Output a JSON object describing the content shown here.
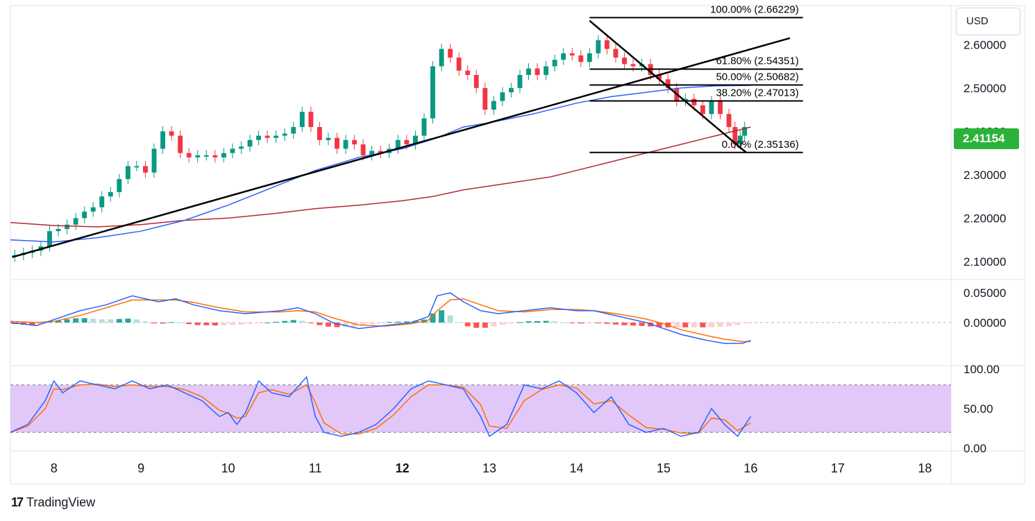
{
  "currency": "USD",
  "last_price": "2.41154",
  "logo": {
    "mark": "17",
    "text": "TradingView"
  },
  "colors": {
    "up": "#089981",
    "down": "#f23645",
    "ma_fast": "#2962ff",
    "ma_slow": "#b22833",
    "macd": "#2962ff",
    "signal": "#ff6d00",
    "rsi": "#2962ff",
    "rsi_signal": "#ff6d00",
    "rsi_band": "#e1c8f9",
    "price_badge": "#2cb23b"
  },
  "chart_data": {
    "type": "candlestick",
    "x_ticks": [
      {
        "label": "8",
        "x": 8
      },
      {
        "label": "9",
        "x": 9
      },
      {
        "label": "10",
        "x": 10
      },
      {
        "label": "11",
        "x": 11
      },
      {
        "label": "12",
        "x": 12,
        "bold": true
      },
      {
        "label": "13",
        "x": 13
      },
      {
        "label": "14",
        "x": 14
      },
      {
        "label": "15",
        "x": 15
      },
      {
        "label": "16",
        "x": 16
      },
      {
        "label": "17",
        "x": 17
      },
      {
        "label": "18",
        "x": 18
      }
    ],
    "price": {
      "ylim": [
        2.06,
        2.69
      ],
      "y_ticks": [
        "2.60000",
        "2.50000",
        "2.40000",
        "2.30000",
        "2.20000",
        "2.10000"
      ],
      "series_close": [
        [
          7.55,
          2.115
        ],
        [
          7.65,
          2.12
        ],
        [
          7.75,
          2.125
        ],
        [
          7.85,
          2.135
        ],
        [
          7.95,
          2.17
        ],
        [
          8.05,
          2.175
        ],
        [
          8.15,
          2.185
        ],
        [
          8.25,
          2.2
        ],
        [
          8.35,
          2.215
        ],
        [
          8.45,
          2.225
        ],
        [
          8.55,
          2.25
        ],
        [
          8.65,
          2.26
        ],
        [
          8.75,
          2.29
        ],
        [
          8.85,
          2.32
        ],
        [
          8.95,
          2.32
        ],
        [
          9.05,
          2.305
        ],
        [
          9.15,
          2.36
        ],
        [
          9.25,
          2.4
        ],
        [
          9.35,
          2.39
        ],
        [
          9.45,
          2.35
        ],
        [
          9.55,
          2.34
        ],
        [
          9.65,
          2.345
        ],
        [
          9.75,
          2.345
        ],
        [
          9.85,
          2.34
        ],
        [
          9.95,
          2.35
        ],
        [
          10.05,
          2.36
        ],
        [
          10.15,
          2.365
        ],
        [
          10.25,
          2.38
        ],
        [
          10.35,
          2.39
        ],
        [
          10.45,
          2.385
        ],
        [
          10.55,
          2.39
        ],
        [
          10.65,
          2.395
        ],
        [
          10.75,
          2.41
        ],
        [
          10.85,
          2.445
        ],
        [
          10.95,
          2.41
        ],
        [
          11.05,
          2.38
        ],
        [
          11.15,
          2.385
        ],
        [
          11.25,
          2.36
        ],
        [
          11.35,
          2.38
        ],
        [
          11.45,
          2.37
        ],
        [
          11.55,
          2.345
        ],
        [
          11.65,
          2.355
        ],
        [
          11.75,
          2.35
        ],
        [
          11.85,
          2.36
        ],
        [
          11.95,
          2.38
        ],
        [
          12.05,
          2.37
        ],
        [
          12.15,
          2.39
        ],
        [
          12.25,
          2.43
        ],
        [
          12.35,
          2.55
        ],
        [
          12.45,
          2.59
        ],
        [
          12.55,
          2.57
        ],
        [
          12.65,
          2.54
        ],
        [
          12.75,
          2.53
        ],
        [
          12.85,
          2.5
        ],
        [
          12.95,
          2.45
        ],
        [
          13.05,
          2.47
        ],
        [
          13.15,
          2.49
        ],
        [
          13.25,
          2.5
        ],
        [
          13.35,
          2.53
        ],
        [
          13.45,
          2.545
        ],
        [
          13.55,
          2.53
        ],
        [
          13.65,
          2.55
        ],
        [
          13.75,
          2.565
        ],
        [
          13.85,
          2.58
        ],
        [
          13.95,
          2.575
        ],
        [
          14.05,
          2.56
        ],
        [
          14.15,
          2.58
        ],
        [
          14.25,
          2.61
        ],
        [
          14.35,
          2.59
        ],
        [
          14.45,
          2.57
        ],
        [
          14.55,
          2.555
        ],
        [
          14.65,
          2.55
        ],
        [
          14.75,
          2.555
        ],
        [
          14.85,
          2.53
        ],
        [
          14.95,
          2.52
        ],
        [
          15.05,
          2.5
        ],
        [
          15.15,
          2.47
        ],
        [
          15.25,
          2.475
        ],
        [
          15.35,
          2.46
        ],
        [
          15.45,
          2.44
        ],
        [
          15.55,
          2.47
        ],
        [
          15.65,
          2.44
        ],
        [
          15.75,
          2.41
        ],
        [
          15.82,
          2.37
        ],
        [
          15.88,
          2.39
        ],
        [
          15.93,
          2.41
        ]
      ],
      "ma_fast": [
        [
          7.5,
          2.15
        ],
        [
          8.0,
          2.145
        ],
        [
          8.5,
          2.155
        ],
        [
          9.0,
          2.17
        ],
        [
          9.5,
          2.195
        ],
        [
          10.0,
          2.23
        ],
        [
          10.5,
          2.27
        ],
        [
          11.0,
          2.31
        ],
        [
          11.5,
          2.34
        ],
        [
          12.0,
          2.36
        ],
        [
          12.4,
          2.385
        ],
        [
          12.7,
          2.41
        ],
        [
          13.0,
          2.42
        ],
        [
          13.5,
          2.44
        ],
        [
          14.0,
          2.465
        ],
        [
          14.4,
          2.48
        ],
        [
          14.8,
          2.49
        ],
        [
          15.2,
          2.5
        ],
        [
          15.6,
          2.505
        ],
        [
          16.0,
          2.506
        ]
      ],
      "ma_slow": [
        [
          7.5,
          2.19
        ],
        [
          8.0,
          2.183
        ],
        [
          8.5,
          2.18
        ],
        [
          9.0,
          2.185
        ],
        [
          9.5,
          2.195
        ],
        [
          10.0,
          2.2
        ],
        [
          10.5,
          2.21
        ],
        [
          11.0,
          2.222
        ],
        [
          11.5,
          2.23
        ],
        [
          12.0,
          2.24
        ],
        [
          12.35,
          2.25
        ],
        [
          12.7,
          2.265
        ],
        [
          13.2,
          2.28
        ],
        [
          13.7,
          2.295
        ],
        [
          14.0,
          2.31
        ],
        [
          14.4,
          2.33
        ],
        [
          14.8,
          2.35
        ],
        [
          15.2,
          2.37
        ],
        [
          15.6,
          2.39
        ],
        [
          16.0,
          2.41
        ]
      ],
      "trendlines": [
        {
          "from": [
            7.52,
            2.11
          ],
          "to": [
            16.45,
            2.615
          ]
        },
        {
          "from": [
            14.15,
            2.655
          ],
          "to": [
            15.95,
            2.351
          ]
        }
      ],
      "fib_levels": [
        {
          "label": "100.00% (2.66229)",
          "value": 2.66229
        },
        {
          "label": "61.80% (2.54351)",
          "value": 2.54351
        },
        {
          "label": "50.00% (2.50682)",
          "value": 2.50682
        },
        {
          "label": "38.20% (2.47013)",
          "value": 2.47013
        },
        {
          "label": "0.00% (2.35136)",
          "value": 2.35136
        }
      ],
      "fib_range_x": [
        14.15,
        16.6
      ]
    },
    "macd": {
      "ylim": [
        -0.07,
        0.07
      ],
      "y_ticks": [
        "0.05000",
        "0.00000"
      ],
      "macd_line": [
        [
          7.5,
          0.0
        ],
        [
          7.8,
          -0.005
        ],
        [
          8.0,
          0.005
        ],
        [
          8.3,
          0.02
        ],
        [
          8.6,
          0.03
        ],
        [
          8.9,
          0.045
        ],
        [
          9.2,
          0.035
        ],
        [
          9.4,
          0.04
        ],
        [
          9.6,
          0.03
        ],
        [
          9.9,
          0.02
        ],
        [
          10.2,
          0.015
        ],
        [
          10.6,
          0.02
        ],
        [
          10.8,
          0.025
        ],
        [
          11.0,
          0.015
        ],
        [
          11.2,
          0.0
        ],
        [
          11.5,
          -0.01
        ],
        [
          11.8,
          -0.005
        ],
        [
          12.1,
          0.0
        ],
        [
          12.3,
          0.01
        ],
        [
          12.4,
          0.045
        ],
        [
          12.55,
          0.05
        ],
        [
          12.7,
          0.035
        ],
        [
          12.9,
          0.02
        ],
        [
          13.1,
          0.015
        ],
        [
          13.4,
          0.02
        ],
        [
          13.7,
          0.025
        ],
        [
          14.0,
          0.02
        ],
        [
          14.2,
          0.02
        ],
        [
          14.5,
          0.01
        ],
        [
          14.8,
          0.0
        ],
        [
          15.0,
          -0.01
        ],
        [
          15.2,
          -0.02
        ],
        [
          15.5,
          -0.03
        ],
        [
          15.7,
          -0.035
        ],
        [
          15.9,
          -0.035
        ],
        [
          16.0,
          -0.03
        ]
      ],
      "signal_line": [
        [
          7.5,
          0.002
        ],
        [
          7.8,
          0.0
        ],
        [
          8.0,
          0.002
        ],
        [
          8.3,
          0.012
        ],
        [
          8.6,
          0.025
        ],
        [
          8.9,
          0.038
        ],
        [
          9.2,
          0.038
        ],
        [
          9.4,
          0.038
        ],
        [
          9.6,
          0.034
        ],
        [
          9.9,
          0.025
        ],
        [
          10.2,
          0.018
        ],
        [
          10.6,
          0.018
        ],
        [
          10.8,
          0.02
        ],
        [
          11.0,
          0.018
        ],
        [
          11.2,
          0.008
        ],
        [
          11.5,
          -0.004
        ],
        [
          11.8,
          -0.006
        ],
        [
          12.1,
          -0.002
        ],
        [
          12.3,
          0.004
        ],
        [
          12.4,
          0.02
        ],
        [
          12.55,
          0.038
        ],
        [
          12.7,
          0.04
        ],
        [
          12.9,
          0.03
        ],
        [
          13.1,
          0.02
        ],
        [
          13.4,
          0.018
        ],
        [
          13.7,
          0.022
        ],
        [
          14.0,
          0.022
        ],
        [
          14.2,
          0.02
        ],
        [
          14.5,
          0.014
        ],
        [
          14.8,
          0.006
        ],
        [
          15.0,
          -0.002
        ],
        [
          15.2,
          -0.012
        ],
        [
          15.5,
          -0.022
        ],
        [
          15.7,
          -0.028
        ],
        [
          15.9,
          -0.032
        ],
        [
          16.0,
          -0.032
        ]
      ]
    },
    "rsi": {
      "ylim": [
        0,
        100
      ],
      "y_ticks": [
        "100.00",
        "50.00",
        "0.00"
      ],
      "band": [
        20,
        80
      ],
      "rsi_line": [
        [
          7.5,
          20
        ],
        [
          7.7,
          30
        ],
        [
          7.9,
          60
        ],
        [
          8.0,
          85
        ],
        [
          8.1,
          70
        ],
        [
          8.3,
          85
        ],
        [
          8.5,
          80
        ],
        [
          8.7,
          75
        ],
        [
          8.9,
          85
        ],
        [
          9.1,
          75
        ],
        [
          9.3,
          80
        ],
        [
          9.5,
          70
        ],
        [
          9.7,
          60
        ],
        [
          9.9,
          40
        ],
        [
          10.0,
          45
        ],
        [
          10.1,
          30
        ],
        [
          10.2,
          45
        ],
        [
          10.35,
          85
        ],
        [
          10.5,
          70
        ],
        [
          10.7,
          65
        ],
        [
          10.9,
          90
        ],
        [
          11.0,
          40
        ],
        [
          11.1,
          20
        ],
        [
          11.3,
          15
        ],
        [
          11.5,
          20
        ],
        [
          11.7,
          30
        ],
        [
          11.9,
          50
        ],
        [
          12.1,
          75
        ],
        [
          12.3,
          85
        ],
        [
          12.5,
          80
        ],
        [
          12.7,
          75
        ],
        [
          12.9,
          40
        ],
        [
          13.0,
          15
        ],
        [
          13.2,
          30
        ],
        [
          13.4,
          80
        ],
        [
          13.6,
          75
        ],
        [
          13.8,
          85
        ],
        [
          14.0,
          70
        ],
        [
          14.2,
          45
        ],
        [
          14.4,
          65
        ],
        [
          14.6,
          30
        ],
        [
          14.8,
          20
        ],
        [
          15.0,
          25
        ],
        [
          15.2,
          15
        ],
        [
          15.4,
          20
        ],
        [
          15.55,
          50
        ],
        [
          15.7,
          30
        ],
        [
          15.85,
          15
        ],
        [
          16.0,
          40
        ]
      ],
      "rsi_signal": [
        [
          7.5,
          20
        ],
        [
          7.7,
          28
        ],
        [
          7.9,
          50
        ],
        [
          8.0,
          75
        ],
        [
          8.1,
          74
        ],
        [
          8.3,
          80
        ],
        [
          8.5,
          81
        ],
        [
          8.7,
          78
        ],
        [
          8.9,
          80
        ],
        [
          9.1,
          78
        ],
        [
          9.3,
          78
        ],
        [
          9.5,
          74
        ],
        [
          9.7,
          65
        ],
        [
          9.9,
          48
        ],
        [
          10.0,
          44
        ],
        [
          10.1,
          38
        ],
        [
          10.2,
          40
        ],
        [
          10.35,
          70
        ],
        [
          10.5,
          74
        ],
        [
          10.7,
          68
        ],
        [
          10.9,
          80
        ],
        [
          11.0,
          58
        ],
        [
          11.1,
          32
        ],
        [
          11.3,
          18
        ],
        [
          11.5,
          18
        ],
        [
          11.7,
          25
        ],
        [
          11.9,
          42
        ],
        [
          12.1,
          65
        ],
        [
          12.3,
          80
        ],
        [
          12.5,
          80
        ],
        [
          12.7,
          77
        ],
        [
          12.9,
          55
        ],
        [
          13.0,
          28
        ],
        [
          13.2,
          25
        ],
        [
          13.4,
          60
        ],
        [
          13.6,
          74
        ],
        [
          13.8,
          80
        ],
        [
          14.0,
          76
        ],
        [
          14.2,
          56
        ],
        [
          14.4,
          60
        ],
        [
          14.6,
          42
        ],
        [
          14.8,
          26
        ],
        [
          15.0,
          24
        ],
        [
          15.2,
          19
        ],
        [
          15.4,
          19
        ],
        [
          15.55,
          38
        ],
        [
          15.7,
          36
        ],
        [
          15.85,
          22
        ],
        [
          16.0,
          32
        ]
      ]
    }
  }
}
